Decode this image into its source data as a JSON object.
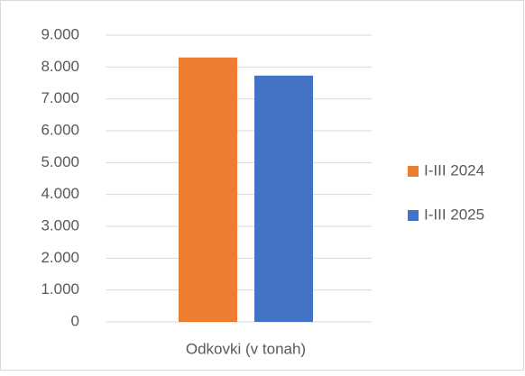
{
  "chart_data": {
    "type": "bar",
    "categories": [
      "Odkovki (v tonah)"
    ],
    "series": [
      {
        "name": "I-III 2024",
        "color": "#ed7d31",
        "values": [
          8300
        ]
      },
      {
        "name": "I-III 2025",
        "color": "#4472c4",
        "values": [
          7730
        ]
      }
    ],
    "ylim": [
      0,
      9000
    ],
    "yticks": [
      0,
      {
        "value": 1000,
        "label": "1.000"
      },
      {
        "value": 2000,
        "label": "2.000"
      },
      {
        "value": 3000,
        "label": "3.000"
      },
      {
        "value": 4000,
        "label": "4.000"
      },
      {
        "value": 5000,
        "label": "5.000"
      },
      {
        "value": 6000,
        "label": "6.000"
      },
      {
        "value": 7000,
        "label": "7.000"
      },
      {
        "value": 8000,
        "label": "8.000"
      },
      {
        "value": 9000,
        "label": "9.000"
      }
    ],
    "grid": true,
    "legend": "right"
  }
}
